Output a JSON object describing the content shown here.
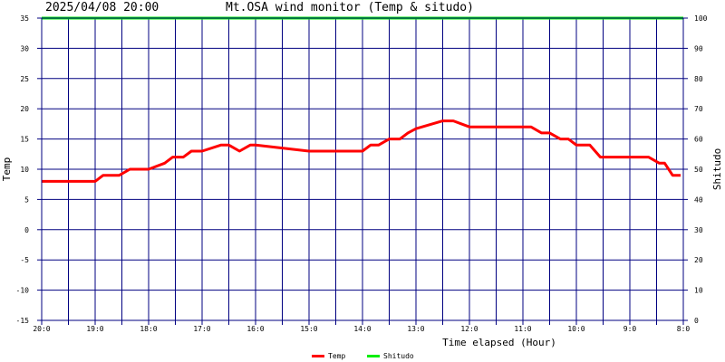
{
  "header": {
    "timestamp": "2025/04/08 20:00",
    "title": "Mt.OSA wind monitor (Temp & situdo)"
  },
  "chart_data": {
    "type": "line",
    "title": "Mt.OSA wind monitor (Temp & situdo)",
    "xlabel": "Time elapsed (Hour)",
    "ylabel": "Temp",
    "y2label": "Shitudo",
    "ylim": [
      -15,
      35
    ],
    "y2lim": [
      0,
      100
    ],
    "yticks": [
      -15,
      -10,
      -5,
      0,
      5,
      10,
      15,
      20,
      25,
      30,
      35
    ],
    "y2ticks": [
      0,
      10,
      20,
      30,
      40,
      50,
      60,
      70,
      80,
      90,
      100
    ],
    "xlim": [
      0,
      12
    ],
    "xticks": [
      {
        "x": 0,
        "label": "20:0"
      },
      {
        "x": 1,
        "label": "19:0"
      },
      {
        "x": 2,
        "label": "18:0"
      },
      {
        "x": 3,
        "label": "17:0"
      },
      {
        "x": 4,
        "label": "16:0"
      },
      {
        "x": 5,
        "label": "15:0"
      },
      {
        "x": 6,
        "label": "14:0"
      },
      {
        "x": 7,
        "label": "13:0"
      },
      {
        "x": 8,
        "label": "12:0"
      },
      {
        "x": 9,
        "label": "11:0"
      },
      {
        "x": 10,
        "label": "10:0"
      },
      {
        "x": 11,
        "label": "9:0"
      },
      {
        "x": 12,
        "label": "8:0"
      }
    ],
    "grid": true,
    "legend_position": "bottom",
    "series": [
      {
        "name": "Temp",
        "axis": "left",
        "color": "#ff0000",
        "x": [
          0,
          1,
          1.15,
          1.45,
          1.65,
          2.0,
          2.3,
          2.45,
          2.65,
          2.8,
          3.0,
          3.35,
          3.5,
          3.7,
          3.9,
          4.0,
          5.0,
          5.65,
          5.8,
          6.0,
          6.15,
          6.3,
          6.5,
          6.7,
          6.85,
          7.0,
          7.5,
          7.7,
          8.0,
          8.5,
          9.0,
          9.15,
          9.35,
          9.5,
          9.7,
          9.85,
          10.0,
          10.25,
          10.45,
          11.0,
          11.35,
          11.55,
          11.65,
          11.8,
          11.95
        ],
        "y": [
          8,
          8,
          9,
          9,
          10,
          10,
          11,
          12,
          12,
          13,
          13,
          14,
          14,
          13,
          14,
          14,
          13,
          13,
          13,
          13,
          14,
          14,
          15,
          15,
          16,
          16.7,
          18,
          18,
          17,
          17,
          17,
          17,
          16,
          16,
          15,
          15,
          14,
          14,
          12,
          12,
          12,
          11,
          11,
          9,
          9
        ]
      },
      {
        "name": "Shitudo",
        "axis": "right",
        "color": "#00ee00",
        "x": [
          0,
          12
        ],
        "y": [
          100,
          100
        ]
      }
    ]
  }
}
